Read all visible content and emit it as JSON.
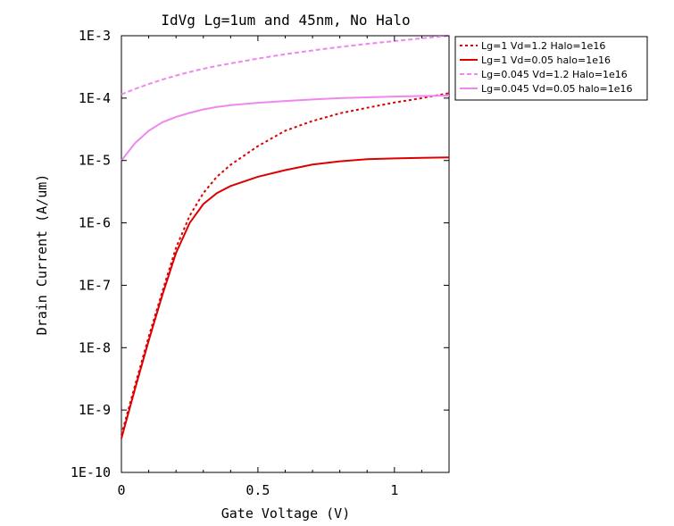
{
  "chart_data": {
    "type": "line",
    "title": "IdVg Lg=1um and 45nm, No Halo",
    "xlabel": "Gate Voltage (V)",
    "ylabel": "Drain Current (A/um)",
    "xlim": [
      0,
      1.2
    ],
    "ylim": [
      1e-10,
      0.001
    ],
    "yscale": "log",
    "grid": false,
    "legend_position": "outside-top-right",
    "x_ticks": [
      {
        "value": 0,
        "label": "0"
      },
      {
        "value": 0.5,
        "label": "0.5"
      },
      {
        "value": 1,
        "label": "1"
      }
    ],
    "y_ticks": [
      {
        "value": 1e-10,
        "label": "1E-10"
      },
      {
        "value": 1e-09,
        "label": "1E-9"
      },
      {
        "value": 1e-08,
        "label": "1E-8"
      },
      {
        "value": 1e-07,
        "label": "1E-7"
      },
      {
        "value": 1e-06,
        "label": "1E-6"
      },
      {
        "value": 1e-05,
        "label": "1E-5"
      },
      {
        "value": 0.0001,
        "label": "1E-4"
      },
      {
        "value": 0.001,
        "label": "1E-3"
      }
    ],
    "x": [
      0,
      0.05,
      0.1,
      0.15,
      0.2,
      0.25,
      0.3,
      0.35,
      0.4,
      0.5,
      0.6,
      0.7,
      0.8,
      0.9,
      1.0,
      1.1,
      1.2
    ],
    "series": [
      {
        "name": "Lg=1 Vd=1.2 Halo=1e16",
        "color": "#dd0000",
        "dash": "dotted",
        "values": [
          4e-10,
          2.5e-09,
          1.5e-08,
          8e-08,
          4e-07,
          1.3e-06,
          3e-06,
          5.5e-06,
          8.5e-06,
          1.7e-05,
          3e-05,
          4.3e-05,
          5.7e-05,
          7e-05,
          8.5e-05,
          0.0001,
          0.00012
        ]
      },
      {
        "name": "Lg=1 Vd=0.05 halo=1e16",
        "color": "#dd0000",
        "dash": "solid",
        "values": [
          3.5e-10,
          2.2e-09,
          1.3e-08,
          7e-08,
          3.3e-07,
          1e-06,
          2e-06,
          3e-06,
          3.9e-06,
          5.5e-06,
          7e-06,
          8.6e-06,
          9.7e-06,
          1.05e-05,
          1.08e-05,
          1.1e-05,
          1.12e-05
        ]
      },
      {
        "name": "Lg=0.045 Vd=1.2 Halo=1e16",
        "color": "#ee88ee",
        "dash": "dashed",
        "values": [
          0.000115,
          0.00014,
          0.000168,
          0.000198,
          0.00023,
          0.000262,
          0.000295,
          0.000328,
          0.00036,
          0.00043,
          0.000505,
          0.00058,
          0.00066,
          0.00074,
          0.00082,
          0.00091,
          0.001
        ]
      },
      {
        "name": "Lg=0.045 Vd=0.05 halo=1e16",
        "color": "#ee88ee",
        "dash": "solid",
        "values": [
          1e-05,
          1.9e-05,
          3e-05,
          4.1e-05,
          5e-05,
          5.8e-05,
          6.6e-05,
          7.2e-05,
          7.7e-05,
          8.4e-05,
          9e-05,
          9.5e-05,
          0.0001,
          0.000103,
          0.000106,
          0.000108,
          0.00011
        ]
      }
    ]
  }
}
